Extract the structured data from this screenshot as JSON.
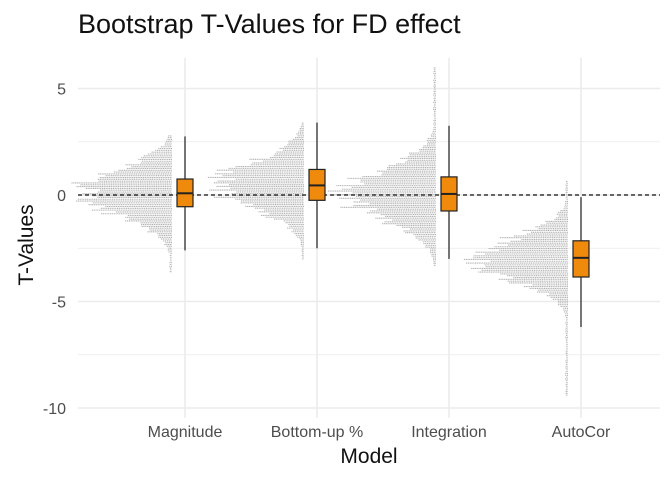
{
  "chart_data": {
    "type": "raincloud",
    "title": "Bootstrap T-Values for FD effect",
    "xlabel": "Model",
    "ylabel": "T-Values",
    "categories": [
      "Magnitude",
      "Bottom-up %",
      "Integration",
      "AutoCor"
    ],
    "ylim": [
      -10.5,
      6.5
    ],
    "yticks": [
      5,
      0,
      -5,
      -10
    ],
    "reference_line": {
      "y": 0,
      "style": "dashed"
    },
    "grid": true,
    "box_color": "#ef8a0c",
    "dot_color": "#b3b3b3",
    "boxplots": [
      {
        "category": "Magnitude",
        "min": -2.6,
        "q1": -0.55,
        "median": 0.08,
        "q3": 0.75,
        "max": 2.75
      },
      {
        "category": "Bottom-up %",
        "min": -2.5,
        "q1": -0.25,
        "median": 0.45,
        "q3": 1.2,
        "max": 3.4
      },
      {
        "category": "Integration",
        "min": -3.0,
        "q1": -0.75,
        "median": 0.05,
        "q3": 0.85,
        "max": 3.25
      },
      {
        "category": "AutoCor",
        "min": -6.2,
        "q1": -3.85,
        "median": -2.95,
        "q3": -2.15,
        "max": -0.1
      }
    ],
    "distributions": [
      {
        "category": "Magnitude",
        "center": 0.1,
        "sd": 1.05,
        "range": [
          -3.6,
          2.8
        ]
      },
      {
        "category": "Bottom-up %",
        "center": 0.45,
        "sd": 1.05,
        "range": [
          -3.0,
          3.4
        ]
      },
      {
        "category": "Integration",
        "center": 0.05,
        "sd": 1.15,
        "range": [
          -3.3,
          6.0
        ]
      },
      {
        "category": "AutoCor",
        "center": -3.0,
        "sd": 1.0,
        "range": [
          -9.4,
          0.7
        ]
      }
    ]
  }
}
